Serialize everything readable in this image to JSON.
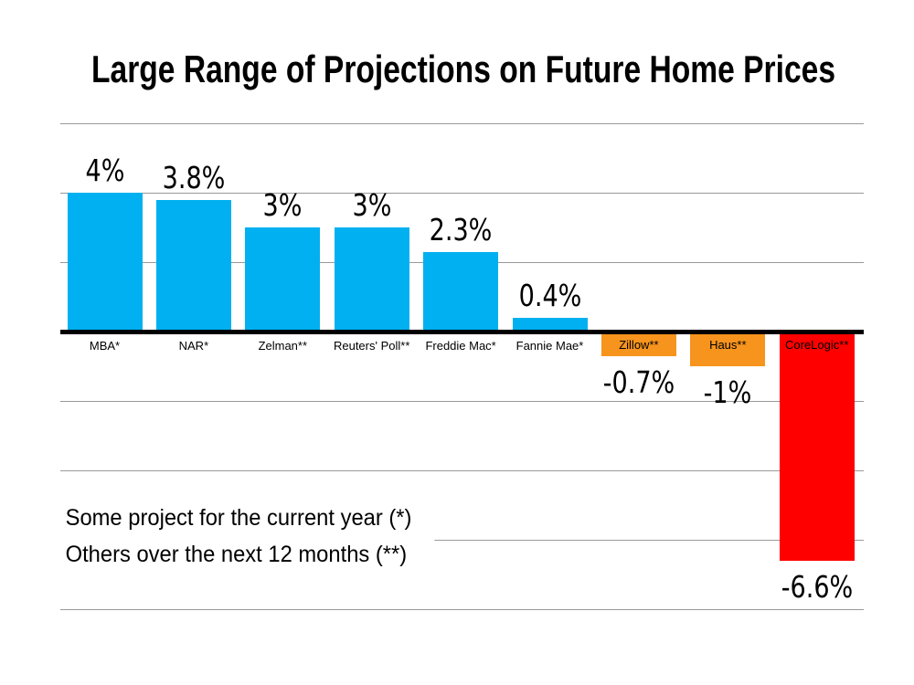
{
  "title": "Large Range of Projections on Future Home Prices",
  "footnote": {
    "line1": "Some project for the current year (*)",
    "line2": "Others over the next 12 months (**)"
  },
  "colors": {
    "background": "#FFFFFF",
    "gridline": "#999999",
    "axis": "#000000",
    "text": "#000000",
    "positive_bar": "#00B0F0",
    "mild_negative_bar": "#F7941D",
    "deep_negative_bar": "#FF0000"
  },
  "chart_data": {
    "type": "bar",
    "title": "Large Range of Projections on Future Home Prices",
    "categories": [
      "MBA*",
      "NAR*",
      "Zelman**",
      "Reuters' Poll**",
      "Freddie Mac*",
      "Fannie Mae*",
      "Zillow**",
      "Haus**",
      "CoreLogic**"
    ],
    "values": [
      4,
      3.8,
      3,
      3,
      2.3,
      0.4,
      -0.7,
      -1,
      -6.6
    ],
    "value_labels": [
      "4%",
      "3.8%",
      "3%",
      "3%",
      "2.3%",
      "0.4%",
      "-0.7%",
      "-1%",
      "-6.6%"
    ],
    "bar_colors": [
      "#00B0F0",
      "#00B0F0",
      "#00B0F0",
      "#00B0F0",
      "#00B0F0",
      "#00B0F0",
      "#F7941D",
      "#F7941D",
      "#FF0000"
    ],
    "xlabel": "",
    "ylabel": "",
    "ylim": [
      -8,
      6
    ],
    "gridline_step": 2,
    "grid": true,
    "legend": false,
    "annotations": [
      "Some project for the current year (*)",
      "Others over the next 12 months (**)"
    ]
  }
}
